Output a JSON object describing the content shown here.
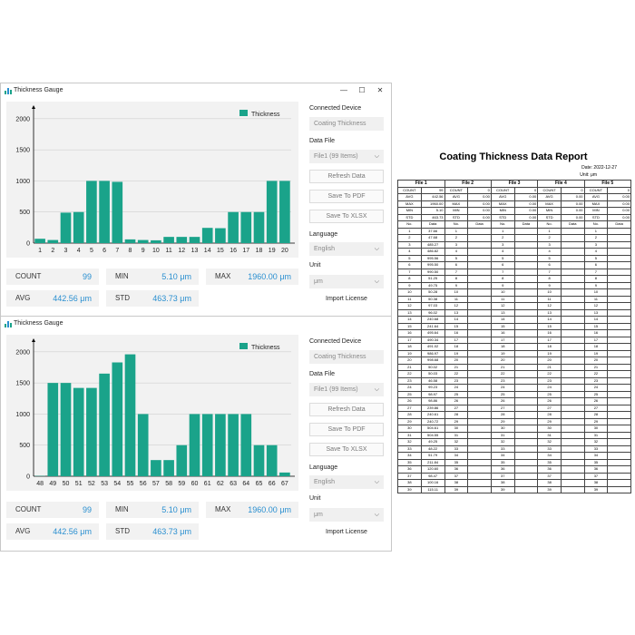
{
  "app": {
    "title": "Thickness Gauge"
  },
  "window_controls": {
    "minimize": "—",
    "maximize": "☐",
    "close": "✕"
  },
  "side": {
    "connected_device_label": "Connected Device",
    "connected_device_value": "Coating Thickness",
    "data_file_label": "Data File",
    "data_file_value": "File1 (99 Items)",
    "refresh_label": "Refresh Data",
    "pdf_label": "Save To PDF",
    "xlsx_label": "Save To XLSX",
    "language_label": "Language",
    "language_value": "English",
    "unit_label": "Unit",
    "unit_value": "μm",
    "license_label": "Import License"
  },
  "stats": {
    "count_label": "COUNT",
    "count_value": "99",
    "min_label": "MIN",
    "min_value": "5.10 μm",
    "max_label": "MAX",
    "max_value": "1960.00 μm",
    "avg_label": "AVG",
    "avg_value": "442.56 μm",
    "std_label": "STD",
    "std_value": "463.73 μm"
  },
  "colors": {
    "bar": "#1aa38a",
    "value": "#2a8fd0"
  },
  "chart_data": [
    {
      "type": "bar",
      "categories": [
        "1",
        "2",
        "3",
        "4",
        "5",
        "6",
        "7",
        "8",
        "9",
        "10",
        "11",
        "12",
        "13",
        "14",
        "15",
        "16",
        "17",
        "18",
        "19",
        "20"
      ],
      "series": [
        {
          "name": "Thickness",
          "values": [
            70,
            50,
            490,
            500,
            1000,
            1000,
            985,
            60,
            50,
            45,
            100,
            100,
            100,
            245,
            240,
            500,
            500,
            500,
            1000,
            1000
          ]
        }
      ],
      "y_ticks": [
        "0",
        "500",
        "1000",
        "1500",
        "2000"
      ],
      "ylim": [
        0,
        2100
      ],
      "legend": "top-right",
      "grid": true
    },
    {
      "type": "bar",
      "categories": [
        "48",
        "49",
        "50",
        "51",
        "52",
        "53",
        "54",
        "55",
        "56",
        "57",
        "58",
        "59",
        "60",
        "61",
        "62",
        "63",
        "64",
        "65",
        "66",
        "67"
      ],
      "series": [
        {
          "name": "Thickness",
          "values": [
            5,
            1500,
            1500,
            1420,
            1420,
            1650,
            1830,
            1960,
            1000,
            260,
            260,
            500,
            1000,
            1000,
            1000,
            1000,
            1000,
            500,
            500,
            60
          ]
        }
      ],
      "y_ticks": [
        "0",
        "500",
        "1000",
        "1500",
        "2000"
      ],
      "ylim": [
        0,
        2100
      ],
      "legend": "top-right",
      "grid": true
    }
  ],
  "report": {
    "title": "Coating Thickness Data Report",
    "date": "Date: 2022-12-27",
    "unit": "Unit: μm",
    "files": [
      "File 1",
      "File 2",
      "File 3",
      "File 4",
      "File 5"
    ],
    "summary": [
      [
        "COUNT",
        "99",
        "COUNT",
        "0",
        "COUNT",
        "0",
        "COUNT",
        "0",
        "COUNT",
        "0"
      ],
      [
        "AVG",
        "442.56",
        "AVG",
        "0.00",
        "AVG",
        "0.00",
        "AVG",
        "0.00",
        "AVG",
        "0.00"
      ],
      [
        "MAX",
        "1960.00",
        "MAX",
        "0.00",
        "MAX",
        "0.00",
        "MAX",
        "0.00",
        "MAX",
        "0.00"
      ],
      [
        "MIN",
        "5.10",
        "MIN",
        "0.00",
        "MIN",
        "0.00",
        "MIN",
        "0.00",
        "MIN",
        "0.00"
      ],
      [
        "STD",
        "463.73",
        "STD",
        "0.00",
        "STD",
        "0.00",
        "STD",
        "0.00",
        "STD",
        "0.00"
      ]
    ],
    "header_row": [
      "No.",
      "Data",
      "No.",
      "Data",
      "No.",
      "Data",
      "No.",
      "Data",
      "No.",
      "Data"
    ],
    "file1_data": [
      "37.66",
      "47.68",
      "485.27",
      "486.82",
      "995.56",
      "995.50",
      "990.50",
      "51.25",
      "49.75",
      "50.28",
      "50.38",
      "97.03",
      "96.02",
      "240.68",
      "241.64",
      "495.64",
      "490.34",
      "491.02",
      "986.97",
      "998.68",
      "50.02",
      "50.03",
      "46.58",
      "99.23",
      "98.97",
      "98.86",
      "239.86",
      "240.61",
      "240.72",
      "504.61",
      "504.55",
      "49.25",
      "48.22",
      "51.79",
      "211.84",
      "120.60",
      "98.47",
      "100.16",
      "115.11"
    ]
  }
}
